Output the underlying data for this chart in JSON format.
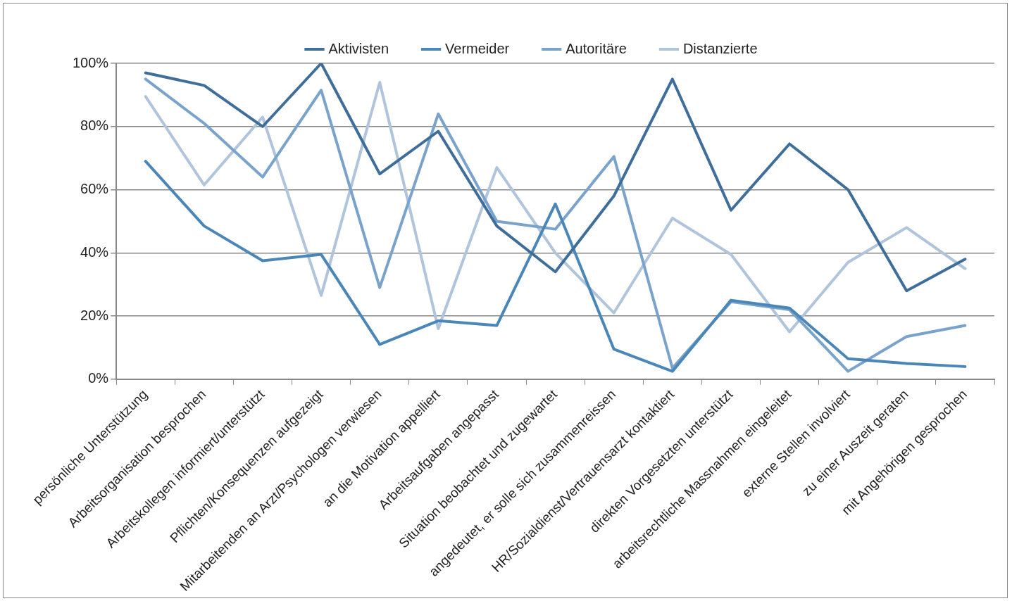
{
  "chart_data": {
    "type": "line",
    "categories": [
      "persönliche Unterstützung",
      "Arbeitsorganisation besprochen",
      "Arbeitskollegen informiert/unterstützt",
      "Pflichten/Konsequenzen aufgezeigt",
      "Mitarbeitenden an Arzt/Psychologen verwiesen",
      "an die Motivation appelliert",
      "Arbeitsaufgaben angepasst",
      "Situation beobachtet und zugewartet",
      "angedeutet, er solle sich zusammenreissen",
      "HR/Sozialdienst/Vertrauensarzt kontaktiert",
      "direkten Vorgesetzten unterstützt",
      "arbeitsrechtliche Massnahmen eingeleitet",
      "externe Stellen involviert",
      "zu einer Auszeit geraten",
      "mit Angehörigen gesprochen"
    ],
    "series": [
      {
        "name": "Aktivisten",
        "color": "#3e6e99",
        "values": [
          97,
          93,
          80,
          100,
          65,
          78.5,
          48.5,
          34,
          58,
          95,
          53.5,
          74.5,
          60,
          28,
          38
        ]
      },
      {
        "name": "Vermeider",
        "color": "#4a86b8",
        "values": [
          69,
          48.5,
          37.5,
          39.5,
          11,
          18.5,
          17,
          55.5,
          9.5,
          2.5,
          25,
          22.5,
          6.5,
          5,
          4
        ]
      },
      {
        "name": "Autoritäre",
        "color": "#7aa3cc",
        "values": [
          95,
          81,
          64,
          91.5,
          29,
          84,
          50,
          47.5,
          70.5,
          3.5,
          24.5,
          22,
          2.5,
          13.5,
          17
        ]
      },
      {
        "name": "Distanzierte",
        "color": "#b0c5dc",
        "values": [
          89.5,
          61.5,
          83,
          26.5,
          94,
          16,
          67,
          40,
          21,
          51,
          39.5,
          15,
          37,
          48,
          35
        ]
      }
    ],
    "ylim": [
      0,
      100
    ],
    "yticks": [
      {
        "value": 0,
        "label": "0%"
      },
      {
        "value": 20,
        "label": "20%"
      },
      {
        "value": 40,
        "label": "40%"
      },
      {
        "value": 60,
        "label": "60%"
      },
      {
        "value": 80,
        "label": "80%"
      },
      {
        "value": 100,
        "label": "100%"
      }
    ],
    "grid": "y",
    "legend": "top",
    "marker": "none",
    "line_style": "solid"
  }
}
